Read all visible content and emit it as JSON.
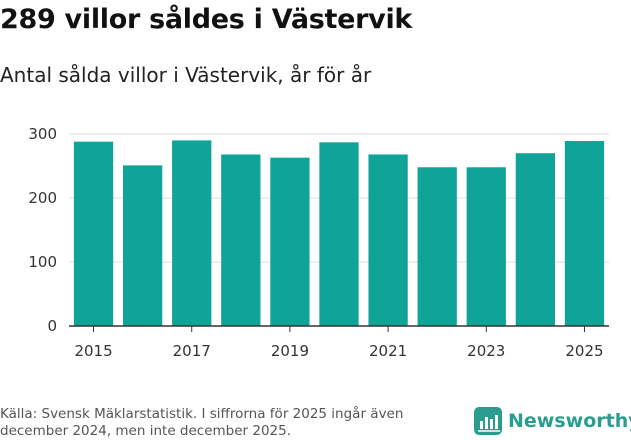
{
  "header": {
    "headline": "289 villor såldes i Västervik",
    "subtitle": "Antal sålda villor i Västervik, år för år"
  },
  "chart_data": {
    "type": "bar",
    "title": "Antal sålda villor i Västervik, år för år",
    "categories": [
      "2015",
      "2016",
      "2017",
      "2018",
      "2019",
      "2020",
      "2021",
      "2022",
      "2023",
      "2024",
      "2025"
    ],
    "values": [
      288,
      251,
      290,
      268,
      263,
      287,
      268,
      248,
      248,
      270,
      289
    ],
    "x_tick_labels": [
      "2015",
      "2017",
      "2019",
      "2021",
      "2023",
      "2025"
    ],
    "y_ticks": [
      0,
      100,
      200,
      300
    ],
    "ylim": [
      0,
      300
    ],
    "xlabel": "",
    "ylabel": "",
    "grid": true,
    "bar_color": "#10a398",
    "grid_color": "#dddddd"
  },
  "footer": {
    "source": "Källa: Svensk Mäklarstatistik. I siffrorna för 2025 ingår även december 2024, men inte december 2025.",
    "brand": "Newsworthy",
    "brand_color": "#2a9d8f"
  }
}
